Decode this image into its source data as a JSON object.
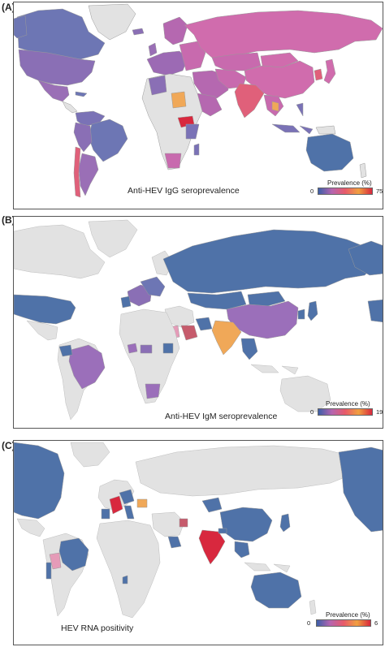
{
  "palette": {
    "ocean": "#ffffff",
    "no_data": "#e2e2e2",
    "border": "#9a9a9a",
    "low": "#4f72a8",
    "mid_low": "#8d71b5",
    "mid": "#d06cad",
    "mid_high": "#e0607a",
    "high_orange": "#f0a858",
    "high": "#d8283e"
  },
  "panels": [
    {
      "letter": "(A)",
      "caption": "Anti-HEV IgG seroprevalence",
      "legend": {
        "title": "Prevalence (%)",
        "min": "0",
        "max": "75",
        "gradient": [
          "#3b5fa8",
          "#b565b0",
          "#e85a6a",
          "#f0a040",
          "#d8283e"
        ]
      }
    },
    {
      "letter": "(B)",
      "caption": "Anti-HEV IgM seroprevalence",
      "legend": {
        "title": "Prevalence (%)",
        "min": "0",
        "max": "19",
        "gradient": [
          "#3b5fa8",
          "#b565b0",
          "#e85a6a",
          "#f0a040",
          "#d8283e"
        ]
      }
    },
    {
      "letter": "(C)",
      "caption": "HEV RNA positivity",
      "legend": {
        "title": "Prevalence (%)",
        "min": "0",
        "max": "6",
        "gradient": [
          "#3b5fa8",
          "#b565b0",
          "#e85a6a",
          "#f0a040",
          "#d8283e"
        ]
      }
    }
  ]
}
